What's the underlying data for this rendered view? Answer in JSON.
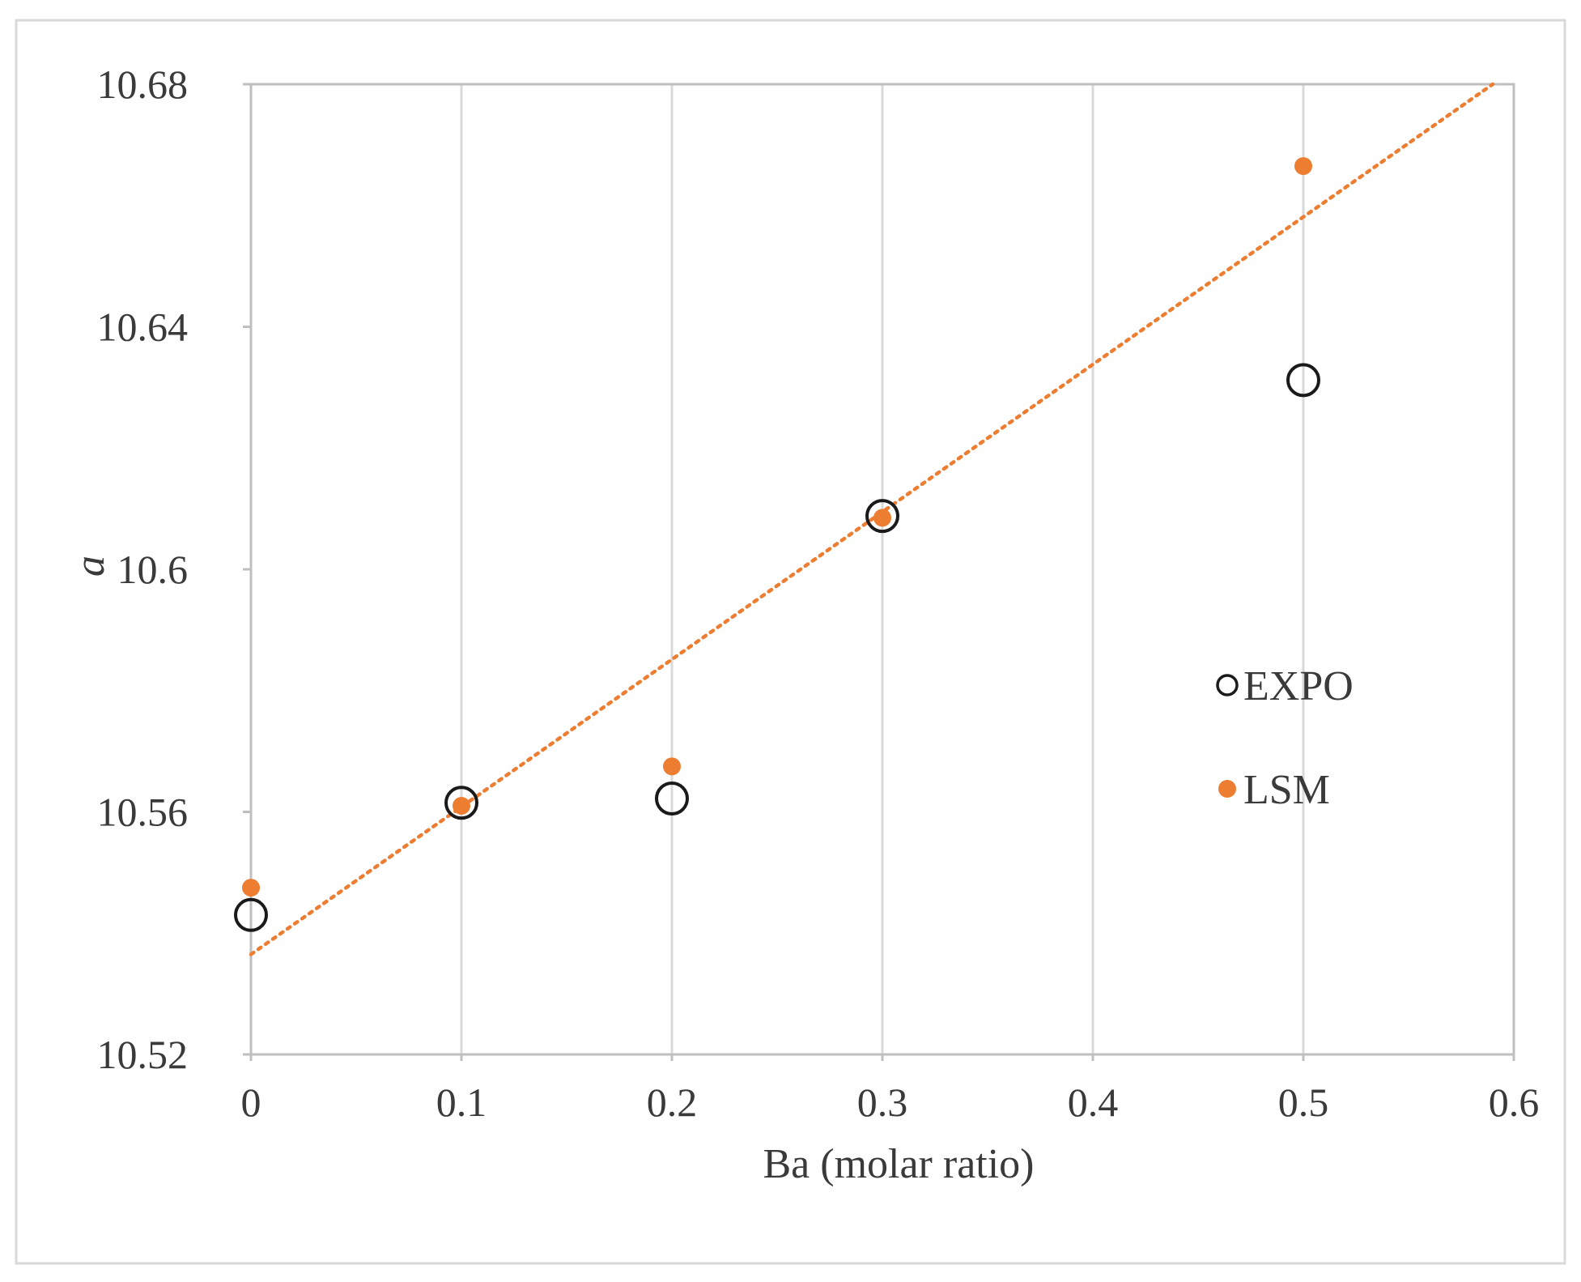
{
  "chart_data": {
    "type": "scatter",
    "title": "",
    "xlabel": "Ba (molar ratio)",
    "ylabel": "a",
    "xlim": [
      0,
      0.6
    ],
    "ylim": [
      10.52,
      10.68
    ],
    "x_ticks": [
      "0",
      "0.1",
      "0.2",
      "0.3",
      "0.4",
      "0.5",
      "0.6"
    ],
    "y_ticks": [
      "10.52",
      "10.56",
      "10.6",
      "10.64",
      "10.68"
    ],
    "x_tick_values": [
      0,
      0.1,
      0.2,
      0.3,
      0.4,
      0.5,
      0.6
    ],
    "y_tick_values": [
      10.52,
      10.56,
      10.6,
      10.64,
      10.68
    ],
    "grid": "vertical",
    "legend_position": "right",
    "series": [
      {
        "name": "EXPO",
        "marker": "open-circle",
        "color": "#1a1a1a",
        "x": [
          0,
          0.1,
          0.2,
          0.3,
          0.5
        ],
        "y": [
          10.543,
          10.5615,
          10.5622,
          10.6088,
          10.6312
        ]
      },
      {
        "name": "LSM",
        "marker": "filled-circle",
        "color": "#ed7d31",
        "x": [
          0,
          0.1,
          0.2,
          0.3,
          0.5
        ],
        "y": [
          10.5475,
          10.561,
          10.5675,
          10.6085,
          10.6665
        ]
      }
    ],
    "trendline": {
      "style": "dotted",
      "color": "#ed7d31",
      "x": [
        0,
        0.59
      ],
      "y": [
        10.5365,
        10.68
      ]
    }
  }
}
